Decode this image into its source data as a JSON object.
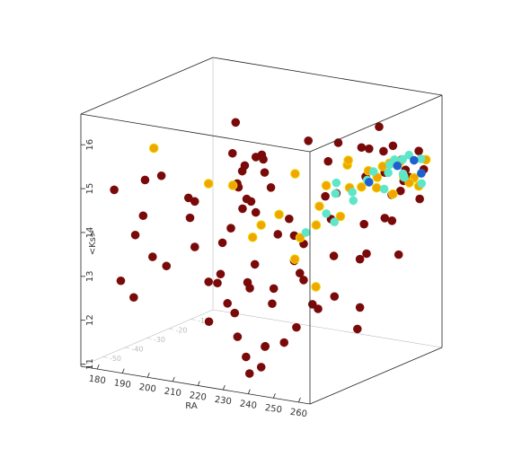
{
  "chart_data": {
    "type": "scatter3d",
    "xlabel": "RA",
    "zlabel": "<Ks>",
    "xlim": [
      173.5,
      264.5
    ],
    "xticks": [
      180,
      190,
      200,
      210,
      220,
      230,
      240,
      250,
      260
    ],
    "ylim": [
      -60,
      0
    ],
    "yticks": [
      -50,
      -40,
      -30,
      -20,
      -10
    ],
    "zlim": [
      10.95,
      16.7
    ],
    "zticks": [
      11,
      12,
      13,
      14,
      15,
      16
    ],
    "series": [
      {
        "color": "#7a0a0a",
        "x": [
          178,
          182,
          185,
          188,
          190,
          192,
          195,
          197,
          200,
          203,
          205,
          208,
          210,
          212,
          215,
          218,
          220,
          222,
          225,
          228,
          230,
          232,
          235,
          237,
          240,
          242,
          245,
          247,
          250,
          252,
          255,
          257,
          260,
          238,
          243,
          248,
          253,
          258,
          241,
          246,
          251,
          256,
          244,
          249,
          254,
          259,
          236,
          239,
          234,
          231,
          226,
          221,
          216,
          211,
          206,
          201,
          196,
          191,
          186,
          181,
          247,
          252,
          257,
          245,
          250,
          255,
          242,
          248,
          253,
          258,
          244,
          239,
          233,
          228,
          224,
          219,
          214,
          209,
          204,
          199,
          250,
          254,
          246,
          241,
          235,
          229,
          256,
          243,
          237,
          252
        ],
        "y": [
          -50,
          -45,
          -55,
          -40,
          -30,
          -52,
          -35,
          -48,
          -20,
          -42,
          -38,
          -25,
          -50,
          -33,
          -44,
          -28,
          -55,
          -36,
          -22,
          -47,
          -30,
          -40,
          -18,
          -45,
          -25,
          -35,
          -15,
          -28,
          -10,
          -20,
          -12,
          -8,
          -5,
          -50,
          -40,
          -30,
          -20,
          -10,
          -55,
          -45,
          -35,
          -25,
          -15,
          -5,
          -3,
          -2,
          -48,
          -38,
          -28,
          -18,
          -58,
          -50,
          -42,
          -34,
          -26,
          -18,
          -10,
          -56,
          -46,
          -36,
          -6,
          -4,
          -2,
          -15,
          -12,
          -8,
          -52,
          -44,
          -36,
          -28,
          -57,
          -53,
          -49,
          -45,
          -41,
          -37,
          -33,
          -29,
          -25,
          -21,
          -20,
          -14,
          -26,
          -32,
          -38,
          -44,
          -10,
          -50,
          -56,
          -8
        ],
        "z": [
          14.8,
          13.7,
          12.9,
          15.0,
          14.3,
          15.2,
          14.0,
          13.2,
          15.9,
          14.6,
          12.7,
          15.1,
          13.8,
          14.9,
          13.1,
          15.4,
          12.3,
          14.4,
          13.6,
          15.0,
          14.2,
          12.5,
          15.3,
          13.0,
          14.7,
          16.2,
          12.0,
          14.9,
          15.5,
          13.4,
          14.6,
          15.1,
          14.4,
          11.8,
          13.3,
          12.6,
          15.8,
          14.9,
          16.3,
          12.2,
          14.5,
          15.3,
          11.5,
          13.8,
          14.8,
          15.0,
          15.7,
          13.5,
          12.8,
          11.9,
          13.3,
          14.0,
          12.4,
          15.6,
          11.2,
          13.9,
          12.0,
          12.6,
          14.2,
          13.0,
          14.9,
          15.2,
          15.4,
          13.1,
          16.1,
          14.6,
          15.5,
          14.1,
          13.7,
          14.3,
          12.0,
          11.4,
          13.6,
          14.9,
          12.8,
          11.1,
          15.2,
          14.7,
          11.7,
          13.5,
          15.8,
          14.1,
          16.0,
          12.4,
          11.6,
          15.9,
          13.2,
          14.4,
          11.3,
          15.6
        ]
      },
      {
        "color": "#f2a400",
        "x": [
          185,
          198,
          212,
          228,
          232,
          236,
          240,
          242,
          244,
          246,
          248,
          250,
          252,
          254,
          256,
          258,
          241,
          245,
          249,
          253,
          257,
          239,
          243,
          247,
          251,
          255,
          259,
          237,
          233,
          226
        ],
        "y": [
          -40,
          -30,
          -35,
          -25,
          -45,
          -20,
          -15,
          -30,
          -10,
          -25,
          -5,
          -20,
          -8,
          -15,
          -3,
          -10,
          -40,
          -35,
          -12,
          -6,
          -2,
          -28,
          -18,
          -22,
          -14,
          -4,
          -1,
          -33,
          -38,
          -42
        ],
        "z": [
          15.6,
          14.7,
          14.9,
          15.1,
          14.4,
          14.8,
          15.2,
          14.6,
          15.0,
          14.3,
          15.1,
          14.9,
          14.5,
          15.3,
          14.8,
          15.0,
          13.6,
          12.9,
          14.7,
          15.2,
          14.6,
          14.1,
          15.4,
          14.9,
          15.0,
          14.7,
          15.2,
          13.9,
          14.5,
          14.0
        ]
      },
      {
        "color": "#5ee6c8",
        "x": [
          240,
          242,
          244,
          246,
          248,
          250,
          252,
          254,
          256,
          258,
          241,
          245,
          249,
          253,
          257,
          243,
          247,
          251,
          255,
          259
        ],
        "y": [
          -20,
          -15,
          -25,
          -10,
          -30,
          -5,
          -12,
          -3,
          -8,
          -2,
          -35,
          -18,
          -6,
          -4,
          -1,
          -28,
          -14,
          -9,
          -7,
          -3
        ],
        "z": [
          14.9,
          14.6,
          14.8,
          15.0,
          14.3,
          15.2,
          14.7,
          15.3,
          15.0,
          14.9,
          14.1,
          14.5,
          15.1,
          14.8,
          15.2,
          14.4,
          14.9,
          15.0,
          15.3,
          14.7
        ]
      },
      {
        "color": "#1f5fd0",
        "x": [
          252,
          256,
          258,
          246
        ],
        "y": [
          -6,
          -3,
          -2,
          -12
        ],
        "z": [
          15.1,
          15.2,
          14.9,
          14.8
        ]
      }
    ]
  }
}
